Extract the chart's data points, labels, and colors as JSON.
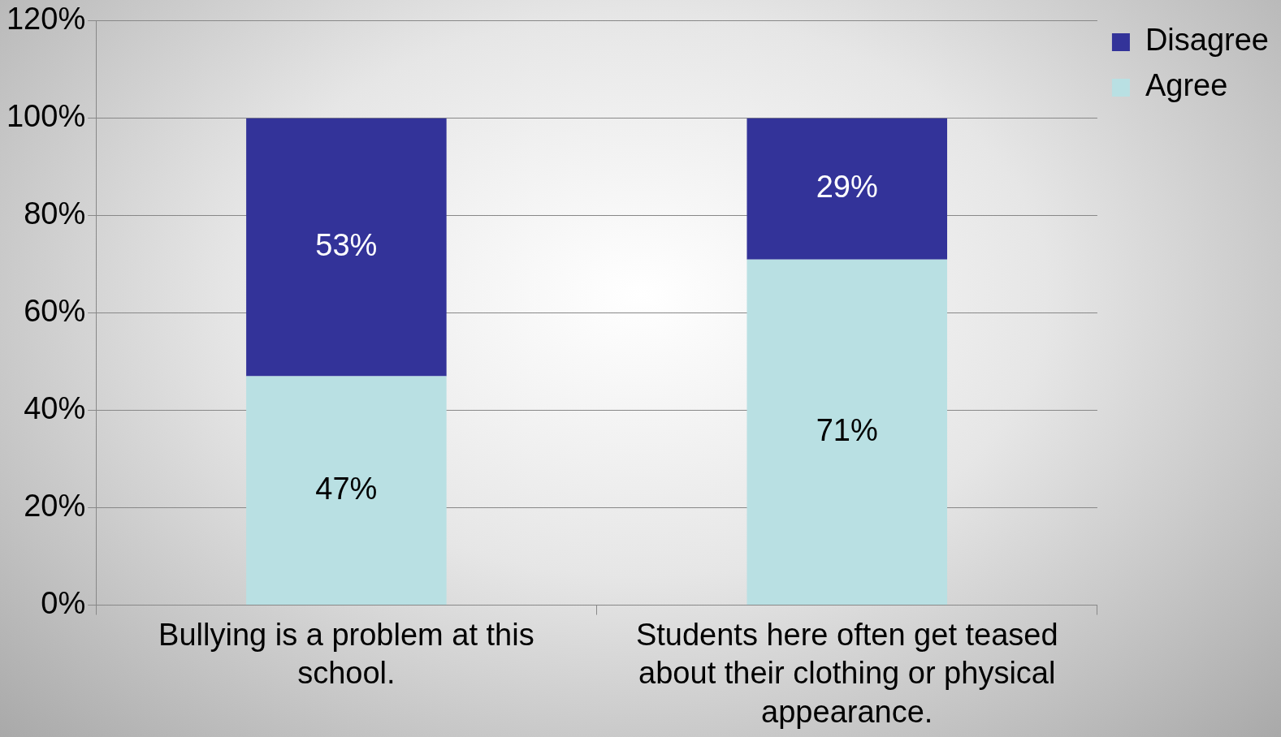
{
  "chart_data": {
    "type": "bar",
    "stacked": true,
    "categories": [
      "Bullying is a problem at this school.",
      "Students here often get teased about their clothing or physical appearance."
    ],
    "series": [
      {
        "name": "Agree",
        "color": "#b9e0e3",
        "values": [
          47,
          71
        ],
        "value_labels": [
          "47%",
          "71%"
        ]
      },
      {
        "name": "Disagree",
        "color": "#333399",
        "values": [
          53,
          29
        ],
        "value_labels": [
          "53%",
          "29%"
        ]
      }
    ],
    "ylim": [
      0,
      120
    ],
    "yticks": [
      {
        "value": 0,
        "label": "0%"
      },
      {
        "value": 20,
        "label": "20%"
      },
      {
        "value": 40,
        "label": "40%"
      },
      {
        "value": 60,
        "label": "60%"
      },
      {
        "value": 80,
        "label": "80%"
      },
      {
        "value": 100,
        "label": "100%"
      },
      {
        "value": 120,
        "label": "120%"
      }
    ],
    "grid": "y",
    "legend": "right"
  }
}
